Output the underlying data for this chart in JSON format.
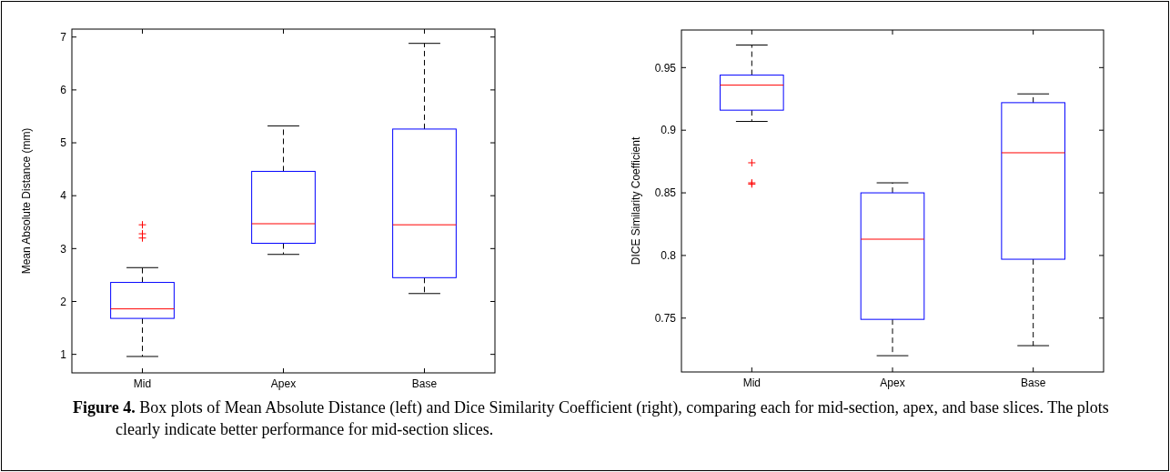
{
  "chart_data": [
    {
      "type": "box",
      "categories": [
        "Mid",
        "Apex",
        "Base"
      ],
      "ylabel": "Mean Absolute Distance (mm)",
      "ylim": [
        0.65,
        7.15
      ],
      "yticks": [
        1,
        2,
        3,
        4,
        5,
        6,
        7
      ],
      "boxes": [
        {
          "low": 0.96,
          "q1": 1.68,
          "median": 1.86,
          "q3": 2.36,
          "high": 2.64,
          "outliers": [
            3.2,
            3.28,
            3.45
          ]
        },
        {
          "low": 2.89,
          "q1": 3.1,
          "median": 3.47,
          "q3": 4.46,
          "high": 5.32
        },
        {
          "low": 2.15,
          "q1": 2.45,
          "median": 3.45,
          "q3": 5.26,
          "high": 6.88
        }
      ],
      "annotations": [
        "Figure 4. Box plots of Mean Absolute Distance (left) and Dice Similarity Coefficient (right), comparing each for mid-section, apex, and base slices. The plots clearly indicate better performance for mid-section slices."
      ]
    },
    {
      "type": "box",
      "categories": [
        "Mid",
        "Apex",
        "Base"
      ],
      "ylabel": "DICE Similarity Coefficient",
      "ylim": [
        0.707,
        0.98
      ],
      "yticks": [
        0.75,
        0.8,
        0.85,
        0.9,
        0.95
      ],
      "boxes": [
        {
          "low": 0.907,
          "q1": 0.916,
          "median": 0.936,
          "q3": 0.944,
          "high": 0.968,
          "outliers": [
            0.874,
            0.858,
            0.857
          ]
        },
        {
          "low": 0.72,
          "q1": 0.749,
          "median": 0.813,
          "q3": 0.85,
          "high": 0.858
        },
        {
          "low": 0.728,
          "q1": 0.797,
          "median": 0.882,
          "q3": 0.922,
          "high": 0.929
        }
      ]
    }
  ]
}
